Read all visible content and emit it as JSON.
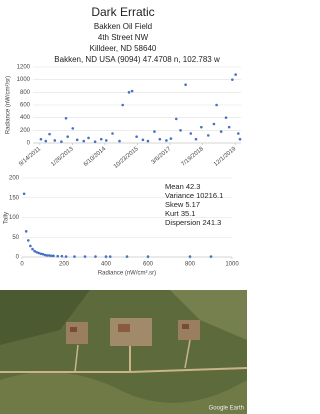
{
  "header": {
    "title": "Dark Erratic",
    "line1": "Bakken Oil Field",
    "line2": "4th Street NW",
    "line3": "Killdeer, ND 58640"
  },
  "chart_data": [
    {
      "type": "scatter",
      "title": "Bakken, ND USA (9094) 47.4708 n, 102.783 w",
      "ylabel": "Radiance (nW/cm²/sr)",
      "color": "#4472c4",
      "grid": true,
      "x": [
        "2011-10-01",
        "2011-12-15",
        "2012-02-10",
        "2012-05-01",
        "2012-08-10",
        "2012-10-20",
        "2012-11-15",
        "2013-02-01",
        "2013-04-10",
        "2013-07-20",
        "2013-10-01",
        "2014-01-10",
        "2014-04-15",
        "2014-07-01",
        "2014-10-05",
        "2015-01-20",
        "2015-03-10",
        "2015-06-15",
        "2015-08-01",
        "2015-10-10",
        "2016-01-15",
        "2016-04-01",
        "2016-07-10",
        "2016-10-01",
        "2017-01-10",
        "2017-03-20",
        "2017-06-10",
        "2017-08-15",
        "2017-11-01",
        "2018-01-20",
        "2018-04-10",
        "2018-07-01",
        "2018-10-15",
        "2019-01-10",
        "2019-02-20",
        "2019-05-01",
        "2019-07-15",
        "2019-09-01",
        "2019-10-20",
        "2019-12-10",
        "2020-01-20",
        "2020-02-15"
      ],
      "values": [
        60,
        30,
        140,
        40,
        20,
        390,
        100,
        230,
        50,
        30,
        80,
        20,
        60,
        40,
        150,
        30,
        600,
        800,
        820,
        100,
        50,
        30,
        180,
        60,
        40,
        70,
        380,
        200,
        920,
        150,
        60,
        250,
        120,
        300,
        600,
        180,
        400,
        250,
        1000,
        1080,
        150,
        60
      ],
      "xlim": [
        "2011-06-01",
        "2020-03-01"
      ],
      "xticks": [
        {
          "value": "2011-09-14",
          "label": "9/14/2011"
        },
        {
          "value": "2013-01-26",
          "label": "1/26/2013"
        },
        {
          "value": "2014-06-10",
          "label": "6/10/2014"
        },
        {
          "value": "2015-10-23",
          "label": "10/23/2015"
        },
        {
          "value": "2017-03-06",
          "label": "3/6/2017"
        },
        {
          "value": "2018-07-19",
          "label": "7/19/2018"
        },
        {
          "value": "2019-12-01",
          "label": "12/1/2019"
        }
      ],
      "ylim": [
        0,
        1200
      ],
      "yticks": [
        0,
        200,
        400,
        600,
        800,
        1000,
        1200
      ]
    },
    {
      "type": "scatter",
      "xlabel": "Radiance (nW/cm².sr)",
      "ylabel": "Tally",
      "color": "#4472c4",
      "grid": true,
      "x": [
        10,
        20,
        30,
        40,
        50,
        60,
        70,
        80,
        90,
        100,
        110,
        120,
        130,
        140,
        150,
        170,
        190,
        210,
        250,
        300,
        350,
        400,
        420,
        500,
        600,
        800,
        900
      ],
      "values": [
        160,
        65,
        42,
        28,
        20,
        15,
        12,
        10,
        8,
        7,
        5,
        4,
        4,
        3,
        3,
        2,
        2,
        1,
        1,
        1,
        1,
        1,
        1,
        1,
        1,
        1,
        1
      ],
      "xlim": [
        0,
        1000
      ],
      "xticks": [
        0,
        200,
        400,
        600,
        800,
        1000
      ],
      "ylim": [
        0,
        200
      ],
      "yticks": [
        0,
        50,
        100,
        150,
        200
      ],
      "annotations": [
        "Mean 42.3",
        "Variance 10216.1",
        "Skew 5.17",
        "Kurt 35.1",
        "Dispersion 241.3"
      ]
    }
  ],
  "image": {
    "credit": "Google Earth"
  }
}
